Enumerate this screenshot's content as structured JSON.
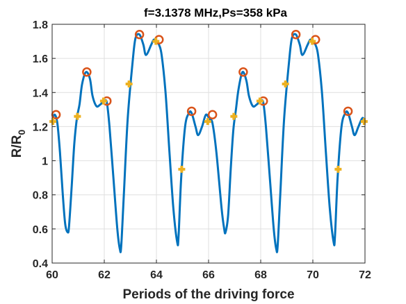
{
  "chart_data": {
    "type": "line",
    "title": "f=3.1378 MHz,Ps=358 kPa",
    "xlabel": "Periods of the driving force",
    "ylabel": "R/R",
    "ylabel_sub": "0",
    "xlim": [
      60,
      72
    ],
    "ylim": [
      0.4,
      1.8
    ],
    "xticks": [
      60,
      62,
      64,
      66,
      68,
      70,
      72
    ],
    "yticks": [
      0.4,
      0.6,
      0.8,
      1,
      1.2,
      1.4,
      1.6,
      1.8
    ],
    "xtick_labels": [
      "60",
      "62",
      "64",
      "66",
      "68",
      "70",
      "72"
    ],
    "ytick_labels": [
      "0.4",
      "0.6",
      "0.8",
      "1",
      "1.2",
      "1.4",
      "1.6",
      "1.8"
    ],
    "grid": true,
    "colors": {
      "line": "#0072BD",
      "circle": "#D95319",
      "cross": "#EDB120",
      "grid": "#dfdfdf",
      "axis": "#262626"
    },
    "series": [
      {
        "role": "curve",
        "x": [
          60.0,
          60.1,
          60.2,
          60.3,
          60.4,
          60.5,
          60.6,
          60.65,
          60.75,
          60.85,
          60.95,
          61.05,
          61.15,
          61.3,
          61.45,
          61.55,
          61.7,
          61.85,
          62.0,
          62.1,
          62.2,
          62.35,
          62.5,
          62.6,
          62.65,
          62.75,
          62.9,
          63.1,
          63.2,
          63.35,
          63.5,
          63.6,
          63.8,
          63.9,
          64.0,
          64.1,
          64.2,
          64.35,
          64.5,
          64.65,
          64.8,
          64.85,
          64.95,
          65.1,
          65.25,
          65.35,
          65.5,
          65.6,
          65.75,
          65.9,
          66.05,
          66.15,
          66.3,
          66.5,
          66.6,
          66.65,
          66.75,
          66.85,
          66.95,
          67.05,
          67.15,
          67.3,
          67.45,
          67.55,
          67.7,
          67.85,
          68.0,
          68.1,
          68.2,
          68.35,
          68.5,
          68.6,
          68.65,
          68.75,
          68.9,
          69.1,
          69.2,
          69.35,
          69.5,
          69.6,
          69.8,
          69.9,
          70.0,
          70.1,
          70.2,
          70.35,
          70.5,
          70.65,
          70.8,
          70.85,
          70.95,
          71.1,
          71.25,
          71.35,
          71.5,
          71.6,
          71.75,
          71.9,
          72.0
        ],
        "y": [
          1.24,
          1.27,
          1.22,
          1.05,
          0.82,
          0.63,
          0.58,
          0.62,
          0.85,
          1.1,
          1.25,
          1.33,
          1.45,
          1.52,
          1.48,
          1.38,
          1.32,
          1.33,
          1.35,
          1.34,
          1.2,
          0.9,
          0.6,
          0.48,
          0.5,
          0.8,
          1.25,
          1.6,
          1.72,
          1.74,
          1.68,
          1.62,
          1.68,
          1.71,
          1.7,
          1.68,
          1.62,
          1.4,
          1.05,
          0.72,
          0.52,
          0.56,
          0.9,
          1.2,
          1.28,
          1.28,
          1.2,
          1.15,
          1.2,
          1.27,
          1.24,
          1.22,
          1.05,
          0.72,
          0.6,
          0.58,
          0.68,
          0.95,
          1.18,
          1.3,
          1.42,
          1.52,
          1.47,
          1.38,
          1.32,
          1.33,
          1.35,
          1.34,
          1.2,
          0.9,
          0.6,
          0.48,
          0.5,
          0.8,
          1.25,
          1.6,
          1.72,
          1.74,
          1.68,
          1.62,
          1.68,
          1.71,
          1.7,
          1.68,
          1.62,
          1.4,
          1.05,
          0.72,
          0.52,
          0.56,
          0.9,
          1.2,
          1.28,
          1.28,
          1.2,
          1.15,
          1.2,
          1.25,
          1.23
        ]
      },
      {
        "role": "circle-markers",
        "x": [
          60.15,
          61.33,
          62.1,
          63.35,
          64.1,
          65.35,
          66.15,
          67.33,
          68.1,
          69.35,
          70.1,
          71.35
        ],
        "y": [
          1.27,
          1.52,
          1.35,
          1.74,
          1.71,
          1.29,
          1.27,
          1.52,
          1.35,
          1.74,
          1.71,
          1.29
        ]
      },
      {
        "role": "cross-markers",
        "x": [
          60.03,
          60.97,
          61.97,
          62.95,
          63.98,
          64.97,
          65.97,
          66.97,
          67.97,
          68.95,
          69.98,
          70.97,
          71.97
        ],
        "y": [
          1.23,
          1.26,
          1.35,
          1.45,
          1.7,
          0.95,
          1.23,
          1.26,
          1.35,
          1.45,
          1.7,
          0.95,
          1.23
        ]
      }
    ]
  }
}
